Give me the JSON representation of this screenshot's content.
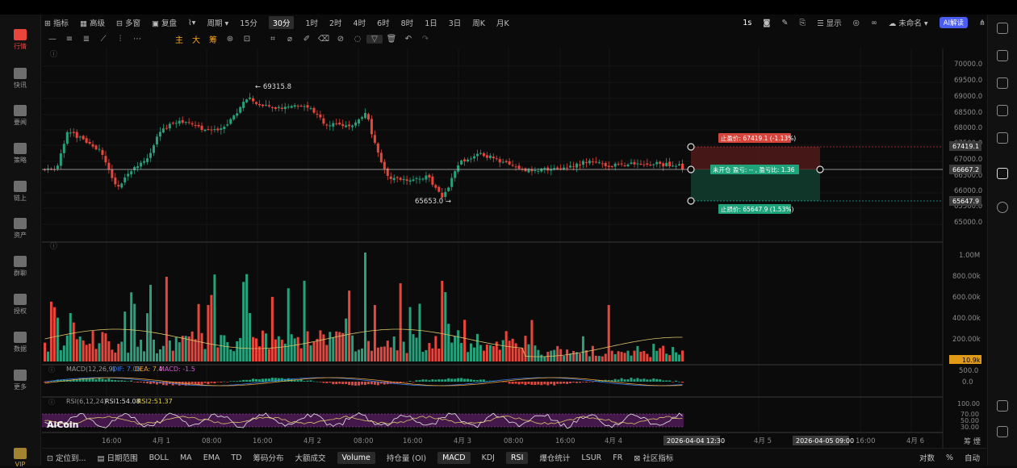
{
  "nav": [
    {
      "label": "行情",
      "icon": "bar-chart-icon",
      "active": true
    },
    {
      "label": "快讯",
      "icon": "news-icon"
    },
    {
      "label": "要闻",
      "icon": "document-icon"
    },
    {
      "label": "策略",
      "icon": "robot-icon"
    },
    {
      "label": "链上",
      "icon": "chain-icon"
    },
    {
      "label": "资产",
      "icon": "wallet-icon"
    },
    {
      "label": "群聊",
      "icon": "chat-icon"
    },
    {
      "label": "授权",
      "icon": "key-icon"
    },
    {
      "label": "数据",
      "icon": "data-icon"
    },
    {
      "label": "更多",
      "icon": "grid-icon"
    },
    {
      "label": "VIP",
      "icon": "crown-icon"
    }
  ],
  "toolbar": {
    "indicator": "指标",
    "advanced": "高级",
    "multi_window": "多窗",
    "replay": "复盘",
    "period": "周期",
    "intervals": [
      "15分",
      "30分",
      "1时",
      "2时",
      "4时",
      "6时",
      "8时",
      "1日",
      "3日",
      "周K",
      "月K"
    ],
    "active_interval": "30分",
    "right": {
      "speed": "1s",
      "display": "显示",
      "unnamed": "未命名",
      "ai_btn": "AI解读"
    }
  },
  "draw_tools": {
    "main": "主",
    "big": "大",
    "chips": "筹"
  },
  "chart_data": {
    "type": "candlestick",
    "price_axis": [
      "70000.0",
      "69500.0",
      "69000.0",
      "68500.0",
      "68000.0",
      "67500.0",
      "67000.0",
      "66500.0",
      "66000.0",
      "65500.0",
      "65000.0"
    ],
    "high_label": "← 69315.8",
    "low_label": "65653.0 →",
    "current_price": "66667.2",
    "take_profit_price": "67419.1",
    "stop_loss_price": "65647.9",
    "take_profit_text": "止盈价: 67419.1 (-1.13%)",
    "stop_loss_text": "止损价: 65647.9 (1.53%)",
    "position_text": "未开仓  盈亏: -- , 盈亏比: 1.36",
    "volume_axis": [
      "1.00M",
      "800.00k",
      "600.00k",
      "400.00k",
      "200.00k"
    ],
    "volume_current": "10.9k",
    "macd_label": "MACD(12,26,9)",
    "macd_dif": "DIF: 7.06",
    "macd_dea": "DEA: 7.4",
    "macd_val": "MACD: -1.5",
    "macd_axis": [
      "500.0",
      "0.0"
    ],
    "rsi_label": "RSI(6,12,24)",
    "rsi1": "RSI1:54.08",
    "rsi2": "RSI2:51.37",
    "rsi_axis": [
      "100.00",
      "70.00",
      "50.00",
      "30.00"
    ],
    "x_labels": [
      "16:00",
      "4月 1",
      "08:00",
      "16:00",
      "4月 2",
      "08:00",
      "16:00",
      "4月 3",
      "08:00",
      "16:00",
      "4月 4"
    ],
    "x_highlight_1": "2026-04-04 12:30",
    "x_labels_2": [
      "4月 5"
    ],
    "x_highlight_2": "2026-04-05 09:00",
    "x_labels_3": [
      "16:00",
      "4月 6"
    ],
    "watermark": "AiCoin"
  },
  "bottom": {
    "locate": "定位到...",
    "date_range": "日期范围",
    "indicators": [
      "BOLL",
      "MA",
      "EMA",
      "TD",
      "筹码分布",
      "大额成交"
    ],
    "sub": [
      "Volume",
      "持仓量 (OI)",
      "MACD",
      "KDJ",
      "RSI",
      "爆仓统计",
      "LSUR",
      "FR"
    ],
    "active_sub": [
      "Volume",
      "MACD",
      "RSI"
    ],
    "community": "社区指标",
    "log": "对数",
    "percent": "%",
    "auto": "自动"
  },
  "colors": {
    "up": "#26a17b",
    "down": "#e8453c",
    "bg": "#0b0b0b",
    "accent": "#f7a51c"
  }
}
